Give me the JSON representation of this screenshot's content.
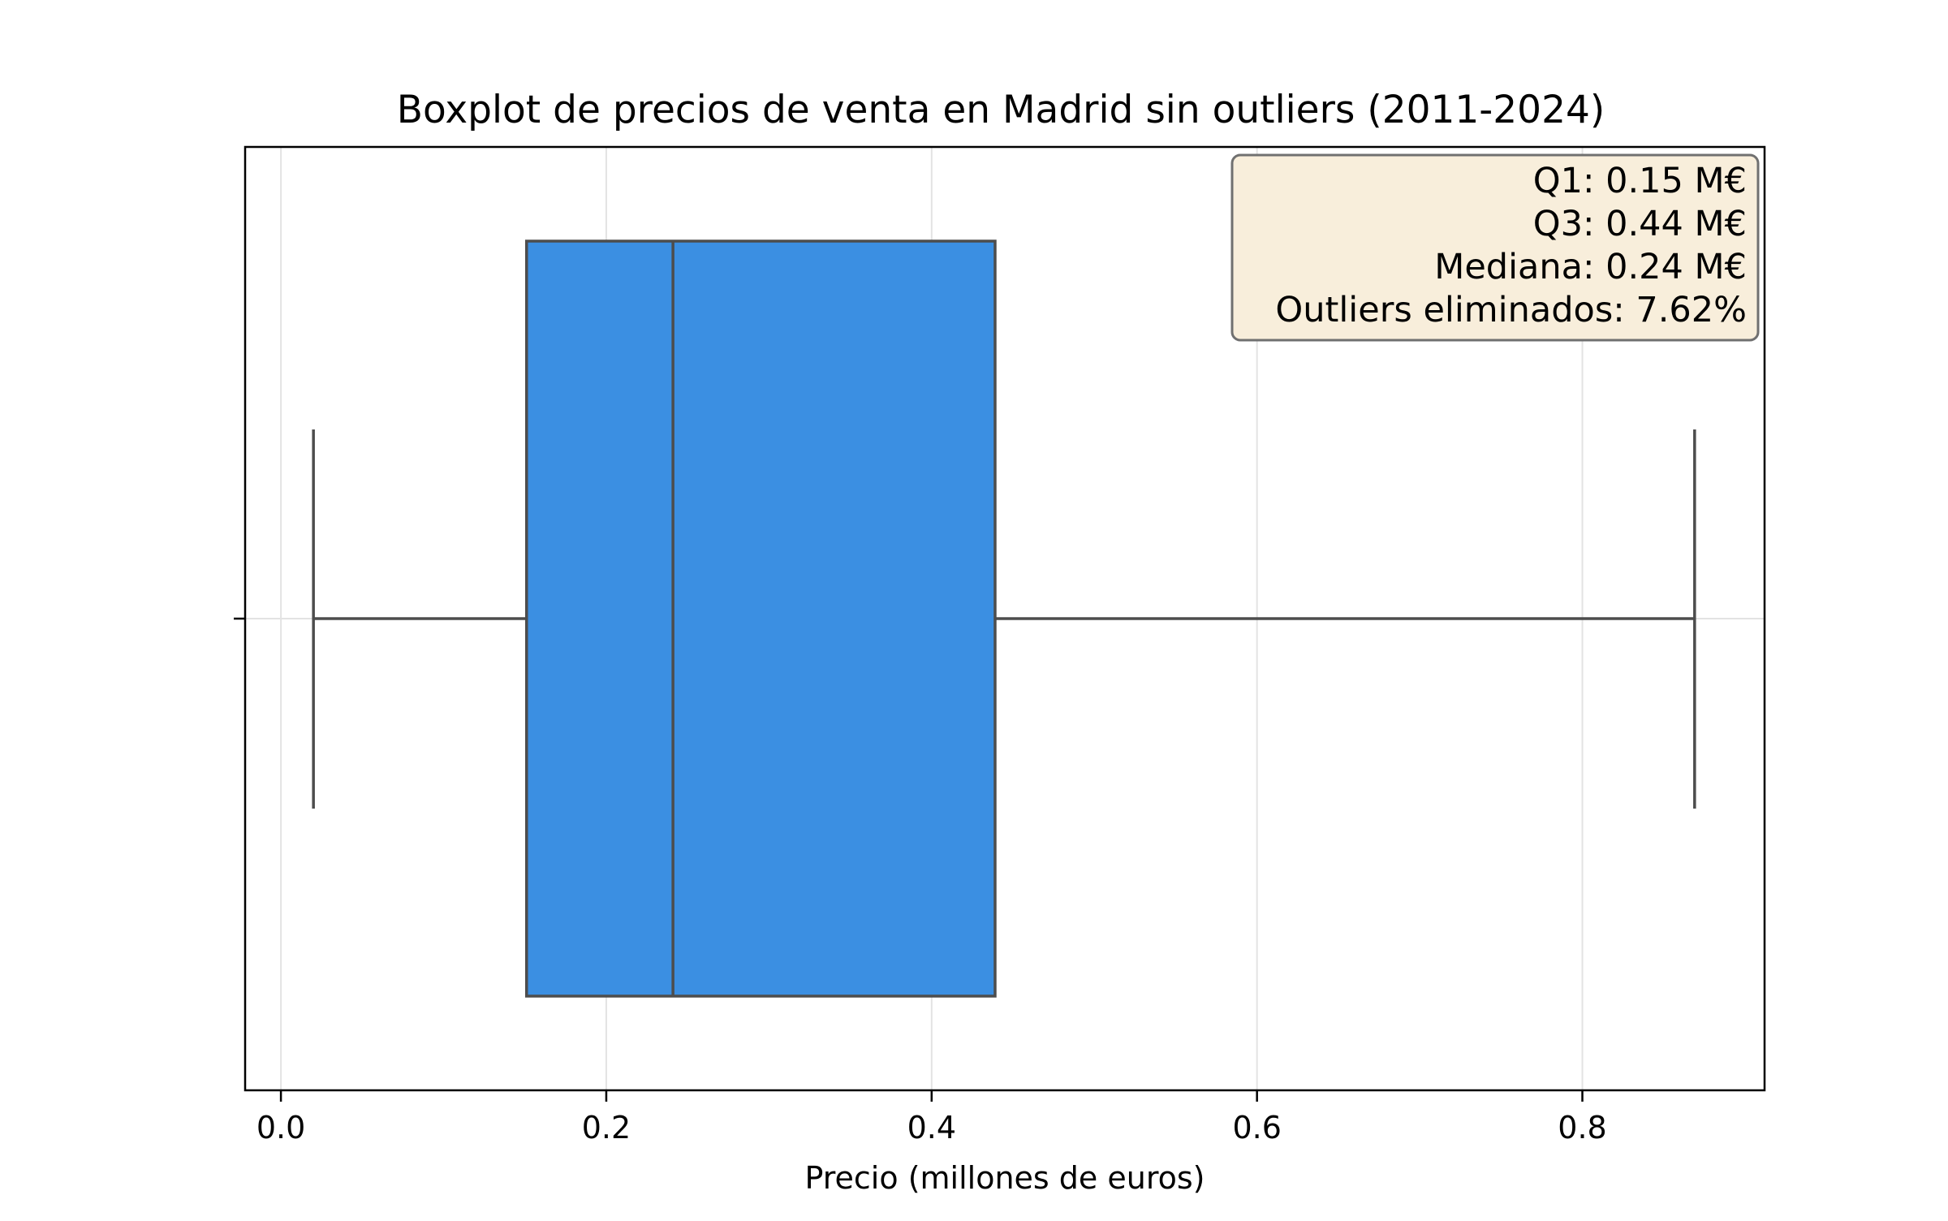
{
  "chart_data": {
    "type": "box",
    "title": "Boxplot de precios de venta en Madrid sin outliers (2011-2024)",
    "xlabel": "Precio (millones de euros)",
    "ylabel": "",
    "xlim": [
      -0.022,
      0.912
    ],
    "xticks": [
      0.0,
      0.2,
      0.4,
      0.6,
      0.8
    ],
    "xtick_labels": [
      "0.0",
      "0.2",
      "0.4",
      "0.6",
      "0.8"
    ],
    "grid": true,
    "box": {
      "whisker_low": 0.02,
      "q1": 0.151,
      "median": 0.241,
      "q3": 0.439,
      "whisker_high": 0.869,
      "color": "#3b8fe2",
      "line_color": "#4d4d4d"
    },
    "annotation": {
      "lines": [
        "Q1: 0.15 M€",
        "Q3: 0.44 M€",
        "Mediana: 0.24 M€",
        "Outliers eliminados: 7.62%"
      ],
      "placement": "top-right",
      "background": "#f8eedb"
    }
  }
}
